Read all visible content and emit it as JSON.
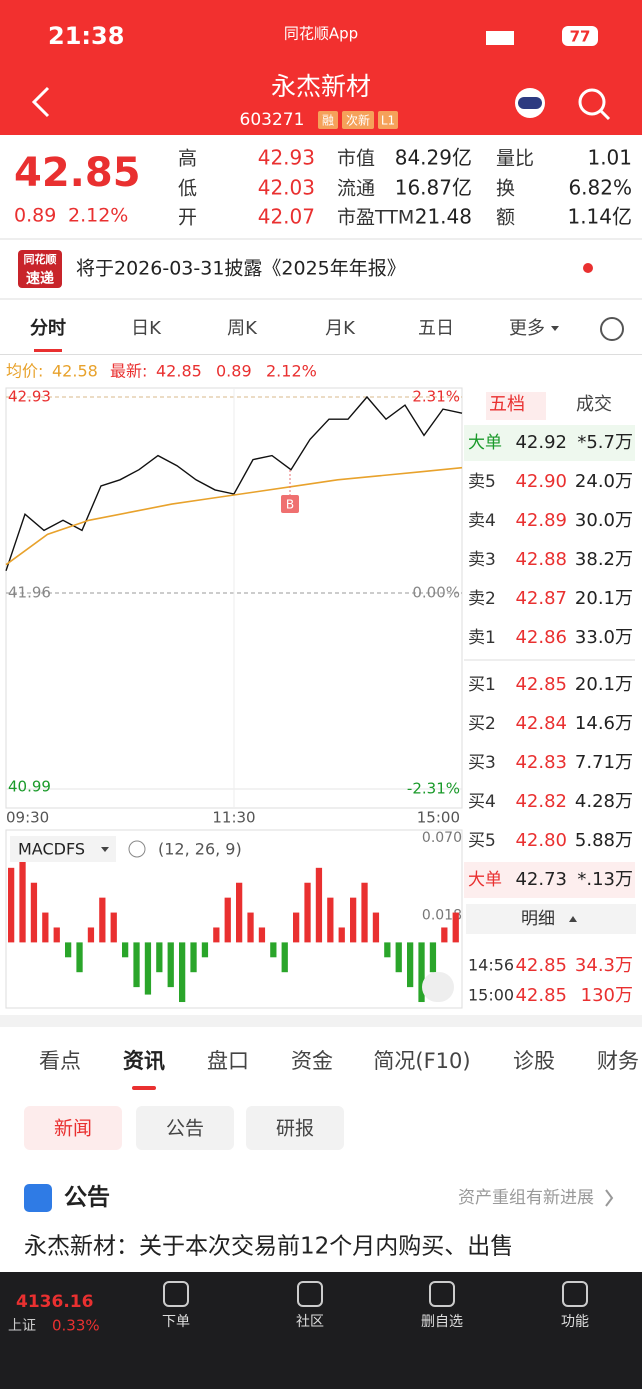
{
  "status_bar": {
    "time": "21:38",
    "app": "同花顺App",
    "battery": "77"
  },
  "header": {
    "title": "永杰新材",
    "code": "603271",
    "tags": [
      "融",
      "次新",
      "L1"
    ]
  },
  "quote": {
    "price": "42.85",
    "change": "0.89",
    "change_pct": "2.12%",
    "stats": [
      [
        "高",
        "42.93"
      ],
      [
        "低",
        "42.03"
      ],
      [
        "开",
        "42.07"
      ],
      [
        "市值",
        "84.29亿"
      ],
      [
        "流通",
        "16.87亿"
      ],
      [
        "市盈TTM",
        "21.48"
      ],
      [
        "量比",
        "1.01"
      ],
      [
        "换",
        "6.82%"
      ],
      [
        "额",
        "1.14亿"
      ]
    ]
  },
  "notice": {
    "badge_top": "同花顺",
    "badge_bottom": "速递",
    "text": "将于2026-03-31披露《2025年年报》"
  },
  "chart_tabs": [
    "分时",
    "日K",
    "周K",
    "月K",
    "五日",
    "更多"
  ],
  "info_line": {
    "avg_label": "均价:",
    "avg": "42.58",
    "latest_label": "最新:",
    "latest": "42.85",
    "change": "0.89",
    "change_pct": "2.12%"
  },
  "chart_data": [
    {
      "type": "line",
      "ylim": [
        40.99,
        42.93
      ],
      "yticks": [
        42.93,
        41.96,
        40.99
      ],
      "y2lim": [
        -2.31,
        2.31
      ],
      "y2ticks": [
        {
          "value": 2.31,
          "label": "2.31%"
        },
        {
          "value": 0,
          "label": "0.00%"
        },
        {
          "value": -2.31,
          "label": "-2.31%"
        }
      ],
      "xticks": [
        "09:30",
        "11:30",
        "15:00"
      ],
      "series": [
        {
          "color": "#111111",
          "values": [
            42.07,
            42.35,
            42.27,
            42.32,
            42.27,
            42.49,
            42.52,
            42.57,
            42.64,
            42.59,
            42.52,
            42.47,
            42.45,
            42.62,
            42.64,
            42.57,
            42.72,
            42.82,
            42.82,
            42.93,
            42.82,
            42.89,
            42.74,
            42.87,
            42.85
          ]
        },
        {
          "color": "#e8a22c",
          "values": [
            42.1,
            42.25,
            42.32,
            42.36,
            42.4,
            42.43,
            42.46,
            42.49,
            42.52,
            42.54,
            42.56,
            42.58
          ]
        }
      ],
      "annotations": [
        {
          "text": "B"
        }
      ]
    },
    {
      "type": "bar",
      "title": "MACDFS",
      "params": "(12, 26, 9)",
      "ylim": [
        -0.044,
        0.07
      ],
      "yticks": [
        {
          "value": 0.07,
          "label": "0.070"
        },
        {
          "value": 0.018,
          "label": "0.018"
        }
      ],
      "colors": {
        "up": "#e93030",
        "down": "#2aa52a"
      },
      "values": [
        0.05,
        0.06,
        0.04,
        0.02,
        0.01,
        -0.01,
        -0.02,
        0.01,
        0.03,
        0.02,
        -0.01,
        -0.03,
        -0.035,
        -0.02,
        -0.03,
        -0.04,
        -0.02,
        -0.01,
        0.01,
        0.03,
        0.04,
        0.02,
        0.01,
        -0.01,
        -0.02,
        0.02,
        0.04,
        0.05,
        0.03,
        0.01,
        0.03,
        0.04,
        0.02,
        -0.01,
        -0.02,
        -0.03,
        -0.04,
        -0.02,
        0.01,
        0.02
      ]
    }
  ],
  "order_book": {
    "tabs": [
      "五档",
      "成交"
    ],
    "rows": [
      [
        "大单",
        "42.92",
        "*5.7万"
      ],
      [
        "卖5",
        "42.90",
        "24.0万"
      ],
      [
        "卖4",
        "42.89",
        "30.0万"
      ],
      [
        "卖3",
        "42.88",
        "38.2万"
      ],
      [
        "卖2",
        "42.87",
        "20.1万"
      ],
      [
        "卖1",
        "42.86",
        "33.0万"
      ],
      [
        "买1",
        "42.85",
        "20.1万"
      ],
      [
        "买2",
        "42.84",
        "14.6万"
      ],
      [
        "买3",
        "42.83",
        "7.71万"
      ],
      [
        "买4",
        "42.82",
        "4.28万"
      ],
      [
        "买5",
        "42.80",
        "5.88万"
      ],
      [
        "大单",
        "42.73",
        "*.13万"
      ]
    ],
    "detail": "明细",
    "trades": [
      [
        "14:56",
        "42.85",
        "34.3万"
      ],
      [
        "15:00",
        "42.85",
        "130万"
      ]
    ]
  },
  "info_tabs": [
    "看点",
    "资讯",
    "盘口",
    "资金",
    "简况(F10)",
    "诊股",
    "财务"
  ],
  "news_tabs": [
    "新闻",
    "公告",
    "研报"
  ],
  "section": {
    "title": "公告",
    "link": "资产重组有新进展"
  },
  "news": {
    "headline": "永杰新材：关于本次交易前12个月内购买、出售"
  },
  "bottom_bar": {
    "index": "4136.16",
    "index_name": "上证",
    "index_pct": "0.33%",
    "items": [
      "下单",
      "社区",
      "删自选",
      "功能"
    ]
  }
}
